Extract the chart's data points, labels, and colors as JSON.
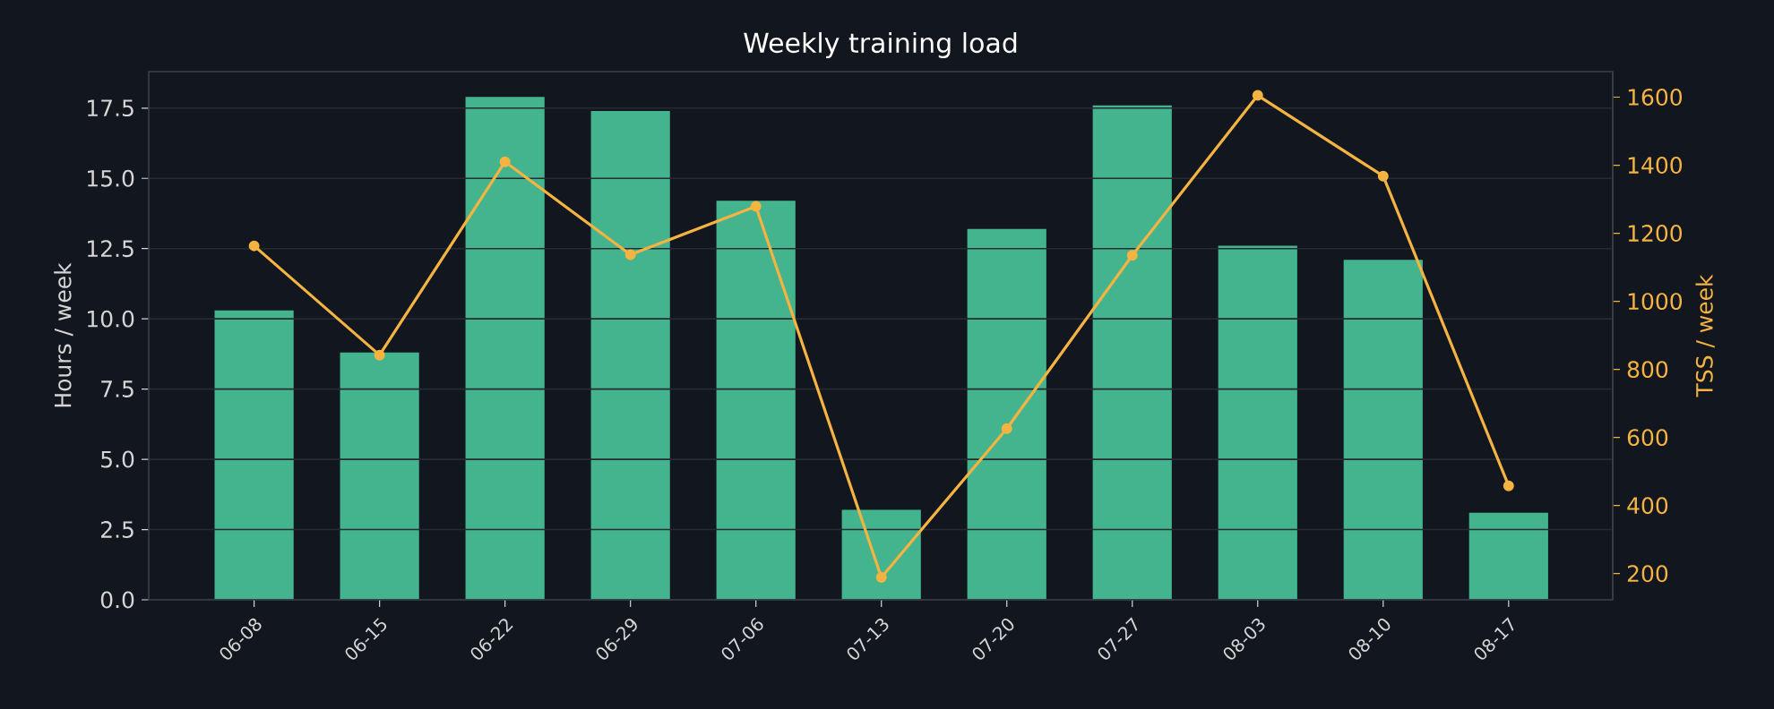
{
  "chart_data": {
    "type": "bar",
    "title": "Weekly training load",
    "ylabel": "Hours / week",
    "y2label": "TSS / week",
    "categories": [
      "06-08",
      "06-15",
      "06-22",
      "06-29",
      "07-06",
      "07-13",
      "07-20",
      "07-27",
      "08-03",
      "08-10",
      "08-17"
    ],
    "series": [
      {
        "color": "#44b48f",
        "values": [
          10.3,
          8.8,
          17.9,
          17.4,
          14.2,
          3.2,
          13.2,
          17.6,
          12.6,
          12.1,
          3.1
        ]
      },
      {
        "type": "line",
        "axis": "y2",
        "color": "#f5b342",
        "values": [
          1163,
          842,
          1410,
          1137,
          1279,
          189,
          626,
          1135,
          1605,
          1368,
          458
        ]
      }
    ],
    "ylim": [
      0,
      18.8
    ],
    "yticks": [
      {
        "value": 0,
        "label": "0.0"
      },
      2.5,
      {
        "value": 5,
        "label": "5.0"
      },
      7.5,
      {
        "value": 10,
        "label": "10.0"
      },
      12.5,
      {
        "value": 15,
        "label": "15.0"
      },
      17.5
    ],
    "y2lim": [
      123,
      1675
    ],
    "y2ticks": [
      200,
      400,
      600,
      800,
      1000,
      1200,
      1400,
      1600
    ],
    "grid": "y",
    "marker": "circle"
  }
}
